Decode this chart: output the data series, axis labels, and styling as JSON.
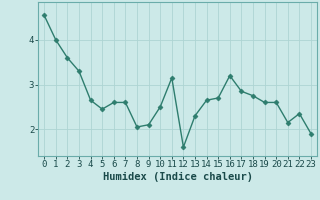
{
  "xlabel": "Humidex (Indice chaleur)",
  "x_values": [
    0,
    1,
    2,
    3,
    4,
    5,
    6,
    7,
    8,
    9,
    10,
    11,
    12,
    13,
    14,
    15,
    16,
    17,
    18,
    19,
    20,
    21,
    22,
    23
  ],
  "y_values": [
    4.55,
    4.0,
    3.6,
    3.3,
    2.65,
    2.45,
    2.6,
    2.6,
    2.05,
    2.1,
    2.5,
    3.15,
    1.6,
    2.3,
    2.65,
    2.7,
    3.2,
    2.85,
    2.75,
    2.6,
    2.6,
    2.15,
    2.35,
    1.9
  ],
  "line_color": "#2e7d6e",
  "marker": "D",
  "marker_size": 2.5,
  "background_color": "#cce9e8",
  "grid_color": "#aed4d3",
  "axis_bg_color": "#cce9e8",
  "ylim": [
    1.4,
    4.85
  ],
  "yticks": [
    2,
    3,
    4
  ],
  "xticks": [
    0,
    1,
    2,
    3,
    4,
    5,
    6,
    7,
    8,
    9,
    10,
    11,
    12,
    13,
    14,
    15,
    16,
    17,
    18,
    19,
    20,
    21,
    22,
    23
  ],
  "tick_fontsize": 6.5,
  "xlabel_fontsize": 7.5,
  "line_width": 1.0,
  "spine_color": "#6aacaa"
}
